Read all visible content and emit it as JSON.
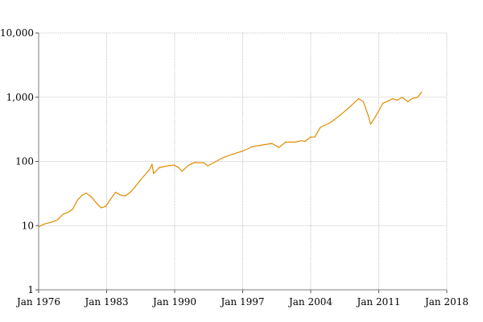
{
  "chart_data": {
    "type": "line",
    "title": "",
    "xlabel": "",
    "ylabel": "",
    "y_scale": "log",
    "ylim": [
      1,
      10000
    ],
    "xlim": [
      "1976-01",
      "2018-01"
    ],
    "grid": true,
    "line_color": "#e08c00",
    "x_ticks": [
      "Jan 1976",
      "Jan 1983",
      "Jan 1990",
      "Jan 1997",
      "Jan 2004",
      "Jan 2011",
      "Jan 2018"
    ],
    "y_ticks": [
      {
        "value": 1,
        "label": "1"
      },
      {
        "value": 10,
        "label": "10"
      },
      {
        "value": 100,
        "label": "100"
      },
      {
        "value": 1000,
        "label": "1,000"
      },
      {
        "value": 10000,
        "label": "10,000"
      }
    ],
    "series": [
      {
        "points": [
          [
            "1976-01",
            9.5
          ],
          [
            "1976-07",
            10.5
          ],
          [
            "1977-01",
            11
          ],
          [
            "1977-07",
            11.5
          ],
          [
            "1978-01",
            12.5
          ],
          [
            "1978-07",
            15
          ],
          [
            "1979-01",
            16
          ],
          [
            "1979-07",
            18
          ],
          [
            "1980-01",
            25
          ],
          [
            "1980-07",
            30
          ],
          [
            "1980-12",
            32
          ],
          [
            "1981-06",
            28
          ],
          [
            "1982-01",
            22
          ],
          [
            "1982-06",
            19
          ],
          [
            "1982-12",
            20
          ],
          [
            "1983-06",
            26
          ],
          [
            "1983-12",
            33
          ],
          [
            "1984-06",
            30
          ],
          [
            "1984-12",
            29
          ],
          [
            "1985-06",
            33
          ],
          [
            "1985-12",
            40
          ],
          [
            "1986-06",
            50
          ],
          [
            "1987-06",
            75
          ],
          [
            "1987-09",
            90
          ],
          [
            "1987-11",
            65
          ],
          [
            "1988-06",
            80
          ],
          [
            "1989-06",
            86
          ],
          [
            "1989-12",
            88
          ],
          [
            "1990-06",
            80
          ],
          [
            "1990-10",
            70
          ],
          [
            "1991-06",
            87
          ],
          [
            "1992-01",
            96
          ],
          [
            "1993-01",
            95
          ],
          [
            "1993-06",
            85
          ],
          [
            "1994-01",
            95
          ],
          [
            "1995-01",
            115
          ],
          [
            "1996-01",
            130
          ],
          [
            "1997-01",
            145
          ],
          [
            "1998-01",
            170
          ],
          [
            "1999-01",
            180
          ],
          [
            "2000-01",
            190
          ],
          [
            "2000-10",
            165
          ],
          [
            "2001-06",
            200
          ],
          [
            "2002-06",
            200
          ],
          [
            "2003-01",
            210
          ],
          [
            "2003-06",
            205
          ],
          [
            "2004-01",
            240
          ],
          [
            "2004-06",
            240
          ],
          [
            "2005-01",
            340
          ],
          [
            "2006-01",
            400
          ],
          [
            "2007-01",
            520
          ],
          [
            "2008-01",
            700
          ],
          [
            "2008-12",
            950
          ],
          [
            "2009-06",
            850
          ],
          [
            "2009-12",
            520
          ],
          [
            "2010-03",
            380
          ],
          [
            "2010-09",
            500
          ],
          [
            "2011-06",
            800
          ],
          [
            "2012-01",
            880
          ],
          [
            "2012-06",
            950
          ],
          [
            "2012-12",
            900
          ],
          [
            "2013-06",
            1000
          ],
          [
            "2014-01",
            850
          ],
          [
            "2014-06",
            950
          ],
          [
            "2015-01",
            1000
          ],
          [
            "2015-06",
            1200
          ]
        ]
      }
    ]
  }
}
